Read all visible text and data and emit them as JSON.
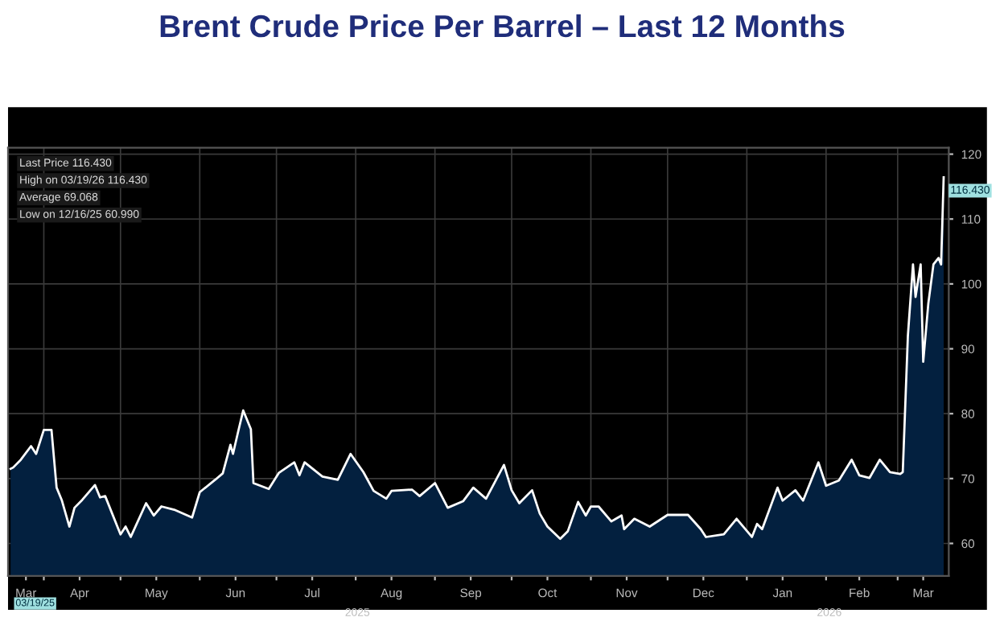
{
  "chart_data": {
    "type": "area",
    "title": "Brent Crude Price Per Barrel – Last 12 Months",
    "x": [
      "2025-03-19",
      "2025-03-20",
      "2025-03-23",
      "2025-03-27",
      "2025-03-29",
      "2025-04-01",
      "2025-04-04",
      "2025-04-06",
      "2025-04-08",
      "2025-04-11",
      "2025-04-13",
      "2025-04-16",
      "2025-04-21",
      "2025-04-23",
      "2025-04-25",
      "2025-05-01",
      "2025-05-03",
      "2025-05-05",
      "2025-05-11",
      "2025-05-14",
      "2025-05-17",
      "2025-05-22",
      "2025-05-29",
      "2025-06-01",
      "2025-06-07",
      "2025-06-10",
      "2025-06-13",
      "2025-06-14",
      "2025-06-16",
      "2025-06-18",
      "2025-06-21",
      "2025-06-22",
      "2025-06-28",
      "2025-07-02",
      "2025-07-08",
      "2025-07-10",
      "2025-07-12",
      "2025-07-19",
      "2025-07-25",
      "2025-07-30",
      "2025-08-04",
      "2025-08-08",
      "2025-08-13",
      "2025-08-15",
      "2025-08-23",
      "2025-08-26",
      "2025-09-01",
      "2025-09-06",
      "2025-09-12",
      "2025-09-16",
      "2025-09-21",
      "2025-09-28",
      "2025-10-01",
      "2025-10-04",
      "2025-10-09",
      "2025-10-12",
      "2025-10-15",
      "2025-10-20",
      "2025-10-23",
      "2025-10-27",
      "2025-10-30",
      "2025-11-01",
      "2025-11-04",
      "2025-11-09",
      "2025-11-13",
      "2025-11-14",
      "2025-11-18",
      "2025-11-24",
      "2025-12-01",
      "2025-12-09",
      "2025-12-14",
      "2025-12-16",
      "2025-12-23",
      "2025-12-28",
      "2026-01-03",
      "2026-01-05",
      "2026-01-07",
      "2026-01-13",
      "2026-01-15",
      "2026-01-20",
      "2026-01-23",
      "2026-01-29",
      "2026-02-01",
      "2026-02-06",
      "2026-02-11",
      "2026-02-14",
      "2026-02-18",
      "2026-02-22",
      "2026-02-26",
      "2026-03-02",
      "2026-03-03",
      "2026-03-05",
      "2026-03-07",
      "2026-03-08",
      "2026-03-10",
      "2026-03-11",
      "2026-03-13",
      "2026-03-15",
      "2026-03-17",
      "2026-03-18",
      "2026-03-19"
    ],
    "series": [
      {
        "color": "#03203f",
        "values": [
          71.5,
          71.7,
          72.9,
          75,
          73.8,
          77.5,
          77.5,
          68.6,
          66.7,
          62.6,
          65.5,
          66.7,
          69,
          67.1,
          67.3,
          61.4,
          62.6,
          61,
          66.2,
          64.3,
          65.7,
          65.2,
          64,
          67.9,
          69.8,
          70.8,
          75.2,
          73.8,
          77.2,
          80.5,
          77.6,
          69.3,
          68.4,
          70.9,
          72.5,
          70.5,
          72.5,
          70.3,
          69.8,
          73.8,
          71,
          68.1,
          66.9,
          68.1,
          68.3,
          67.3,
          69.3,
          65.5,
          66.5,
          68.6,
          66.9,
          72.1,
          68.2,
          66.2,
          68.2,
          64.6,
          62.6,
          60.7,
          61.9,
          66.4,
          64.3,
          65.7,
          65.7,
          63.4,
          64.3,
          62.2,
          63.8,
          62.6,
          64.4,
          64.4,
          62.2,
          60.99,
          61.4,
          63.8,
          61,
          63,
          62.2,
          68.6,
          66.6,
          68.2,
          66.6,
          72.5,
          68.9,
          69.7,
          72.9,
          70.5,
          70.1,
          72.9,
          71,
          70.7,
          71,
          92,
          103,
          98,
          103,
          88,
          97,
          103,
          104,
          103,
          116.43
        ]
      }
    ],
    "xlim": [
      "2025-03-18",
      "2026-03-21"
    ],
    "xticks": [
      {
        "value": "2025-03-25",
        "label": "Mar"
      },
      {
        "value": "2025-04-01",
        "label": null
      },
      {
        "value": "2025-04-15",
        "label": "Apr"
      },
      {
        "value": "2025-05-01",
        "label": null
      },
      {
        "value": "2025-05-15",
        "label": "May"
      },
      {
        "value": "2025-06-01",
        "label": null
      },
      {
        "value": "2025-06-15",
        "label": "Jun"
      },
      {
        "value": "2025-07-01",
        "label": null
      },
      {
        "value": "2025-07-15",
        "label": "Jul"
      },
      {
        "value": "2025-08-01",
        "label": null
      },
      {
        "value": "2025-08-15",
        "label": "Aug"
      },
      {
        "value": "2025-09-01",
        "label": null
      },
      {
        "value": "2025-09-15",
        "label": "Sep"
      },
      {
        "value": "2025-10-01",
        "label": null
      },
      {
        "value": "2025-10-15",
        "label": "Oct"
      },
      {
        "value": "2025-11-01",
        "label": null
      },
      {
        "value": "2025-11-15",
        "label": "Nov"
      },
      {
        "value": "2025-12-01",
        "label": null
      },
      {
        "value": "2025-12-15",
        "label": "Dec"
      },
      {
        "value": "2026-01-01",
        "label": null
      },
      {
        "value": "2026-01-15",
        "label": "Jan"
      },
      {
        "value": "2026-02-01",
        "label": null
      },
      {
        "value": "2026-02-14",
        "label": "Feb"
      },
      {
        "value": "2026-03-01",
        "label": null
      },
      {
        "value": "2026-03-11",
        "label": "Mar"
      }
    ],
    "ylim": [
      55,
      121
    ],
    "yticks": [
      60,
      70,
      80,
      90,
      100,
      110,
      120
    ],
    "grid": true,
    "annotations": [
      {
        "text": "116.430",
        "x": "2026-03-19",
        "y": 116.43
      },
      "Last Price 116.430",
      "High on 03/19/26 116.430",
      "Average 69.068",
      "Low on 12/16/25 60.990",
      "03/19/25",
      "2025",
      "2026"
    ]
  }
}
